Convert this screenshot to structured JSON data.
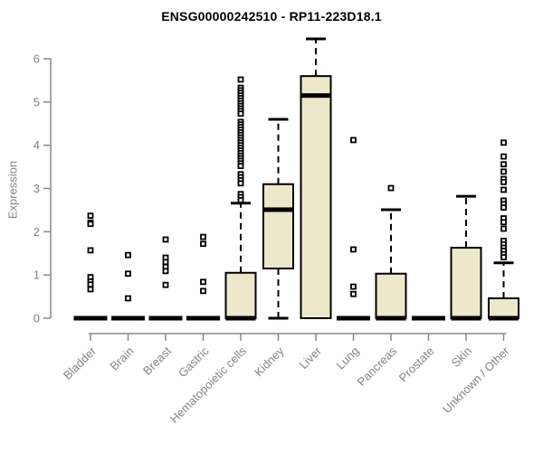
{
  "title": "ENSG00000242510 - RP11-223D18.1",
  "colors": {
    "box_fill": "#EDE8CC",
    "box_border": "#000000",
    "median": "#000000",
    "whisker": "#000000",
    "outlier": "#000000",
    "axis_line": "#888888",
    "axis_text": "#848484",
    "title_text": "#000000",
    "background": "#FFFFFF"
  },
  "chart_data": {
    "type": "boxplot",
    "title": "ENSG00000242510 - RP11-223D18.1",
    "xlabel": "",
    "ylabel": "Expression",
    "ylim": [
      0,
      6.5
    ],
    "yticks": [
      0,
      1,
      2,
      3,
      4,
      5,
      6
    ],
    "grid": false,
    "legend": "none",
    "categories": [
      "Bladder",
      "Brain",
      "Breast",
      "Gastric",
      "Hematopoietic cells",
      "Kidney",
      "Liver",
      "Lung",
      "Pancreas",
      "Prostate",
      "Skin",
      "Unknown / Other"
    ],
    "boxes": [
      {
        "category": "Bladder",
        "q1": 0,
        "median": 0,
        "q3": 0,
        "whisker_low": 0,
        "whisker_high": 0,
        "outliers": [
          2.37,
          2.21,
          2.18,
          1.57,
          0.95,
          0.85,
          0.78,
          0.67
        ]
      },
      {
        "category": "Brain",
        "q1": 0,
        "median": 0,
        "q3": 0,
        "whisker_low": 0,
        "whisker_high": 0,
        "outliers": [
          1.46,
          1.03,
          0.46
        ]
      },
      {
        "category": "Breast",
        "q1": 0,
        "median": 0,
        "q3": 0,
        "whisker_low": 0,
        "whisker_high": 0,
        "outliers": [
          1.82,
          1.4,
          1.3,
          1.19,
          1.09,
          0.77
        ]
      },
      {
        "category": "Gastric",
        "q1": 0,
        "median": 0,
        "q3": 0,
        "whisker_low": 0,
        "whisker_high": 0,
        "outliers": [
          1.88,
          1.72,
          0.84,
          0.63
        ]
      },
      {
        "category": "Hematopoietic cells",
        "q1": 0,
        "median": 0,
        "q3": 1.05,
        "whisker_low": 0,
        "whisker_high": 2.66,
        "outliers": [
          5.52,
          5.33,
          5.27,
          5.21,
          5.15,
          5.09,
          5.03,
          4.97,
          4.91,
          4.85,
          4.79,
          4.73,
          4.54,
          4.48,
          4.42,
          4.36,
          4.3,
          4.24,
          4.18,
          4.12,
          4.06,
          4.0,
          3.94,
          3.88,
          3.82,
          3.76,
          3.7,
          3.64,
          3.58,
          3.52,
          3.33,
          3.26,
          3.19,
          3.12,
          2.87,
          2.8,
          2.73
        ]
      },
      {
        "category": "Kidney",
        "q1": 1.15,
        "median": 2.51,
        "q3": 3.1,
        "whisker_low": 0,
        "whisker_high": 4.6,
        "outliers": []
      },
      {
        "category": "Liver",
        "q1": 0,
        "median": 5.15,
        "q3": 5.6,
        "whisker_low": 0,
        "whisker_high": 6.46,
        "outliers": []
      },
      {
        "category": "Lung",
        "q1": 0,
        "median": 0,
        "q3": 0,
        "whisker_low": 0,
        "whisker_high": 0,
        "outliers": [
          4.12,
          1.59,
          0.73,
          0.56
        ]
      },
      {
        "category": "Pancreas",
        "q1": 0,
        "median": 0,
        "q3": 1.03,
        "whisker_low": 0,
        "whisker_high": 2.51,
        "outliers": [
          3.01
        ]
      },
      {
        "category": "Prostate",
        "q1": 0,
        "median": 0,
        "q3": 0,
        "whisker_low": 0,
        "whisker_high": 0,
        "outliers": []
      },
      {
        "category": "Skin",
        "q1": 0,
        "median": 0,
        "q3": 1.63,
        "whisker_low": 0,
        "whisker_high": 2.82,
        "outliers": []
      },
      {
        "category": "Unknown / Other",
        "q1": 0,
        "median": 0,
        "q3": 0.46,
        "whisker_low": 0,
        "whisker_high": 1.28,
        "outliers": [
          4.06,
          3.74,
          3.56,
          3.39,
          3.22,
          3.15,
          2.97,
          2.72,
          2.64,
          2.56,
          2.31,
          2.22,
          2.07,
          1.79,
          1.71,
          1.63,
          1.56,
          1.48,
          1.41
        ]
      }
    ]
  }
}
